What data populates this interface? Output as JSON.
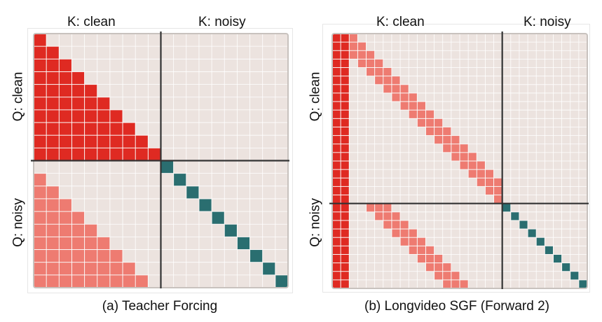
{
  "colors": {
    "background": "#ece3df",
    "grid": "#ffffff",
    "clean_attention": "#df2a22",
    "noisy_attention": "#ee7b71",
    "self_attention": "#2a6e70",
    "divider": "#333333",
    "border": "#c8c2be"
  },
  "panels": [
    {
      "id": "a",
      "k_clean_label": "K: clean",
      "k_noisy_label": "K: noisy",
      "q_clean_label": "Q: clean",
      "q_noisy_label": "Q: noisy",
      "caption": "(a) Teacher Forcing",
      "grid_size": 20,
      "split": 10,
      "cells": {
        "clean_to_clean": "causal-lower-triangle",
        "noisy_to_clean": "strict-lower-triangle",
        "noisy_to_noisy": "diagonal"
      }
    },
    {
      "id": "b",
      "k_clean_label": "K: clean",
      "k_noisy_label": "K: noisy",
      "q_clean_label": "Q: clean",
      "q_noisy_label": "Q: noisy",
      "caption": "(b) Longvideo SGF (Forward 2)",
      "grid_size": 30,
      "split": 20,
      "cells": {
        "sink_columns": 2,
        "clean_band_width": 3,
        "noisy_band_width": 3,
        "noisy_to_noisy": "diagonal"
      }
    }
  ]
}
